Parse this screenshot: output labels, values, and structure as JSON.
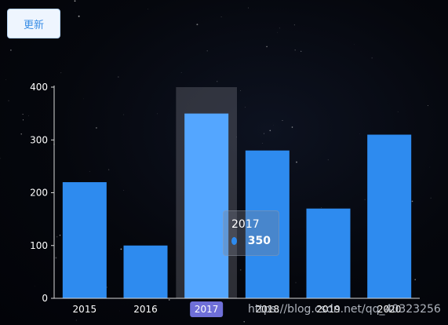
{
  "toolbar": {
    "update_label": "更新"
  },
  "chart_data": {
    "type": "bar",
    "categories": [
      "2015",
      "2016",
      "2017",
      "2018",
      "2019",
      "2020"
    ],
    "values": [
      220,
      100,
      350,
      280,
      170,
      310
    ],
    "ylim": [
      0,
      400
    ],
    "yticks": [
      0,
      100,
      200,
      300,
      400
    ],
    "highlighted_category": "2017",
    "bar_color": "#2e8bef",
    "highlight_color": "#54a6ff",
    "tooltip": {
      "title": "2017",
      "value": "350"
    }
  },
  "watermark": "https://blog.csdn.net/qq_40323256"
}
